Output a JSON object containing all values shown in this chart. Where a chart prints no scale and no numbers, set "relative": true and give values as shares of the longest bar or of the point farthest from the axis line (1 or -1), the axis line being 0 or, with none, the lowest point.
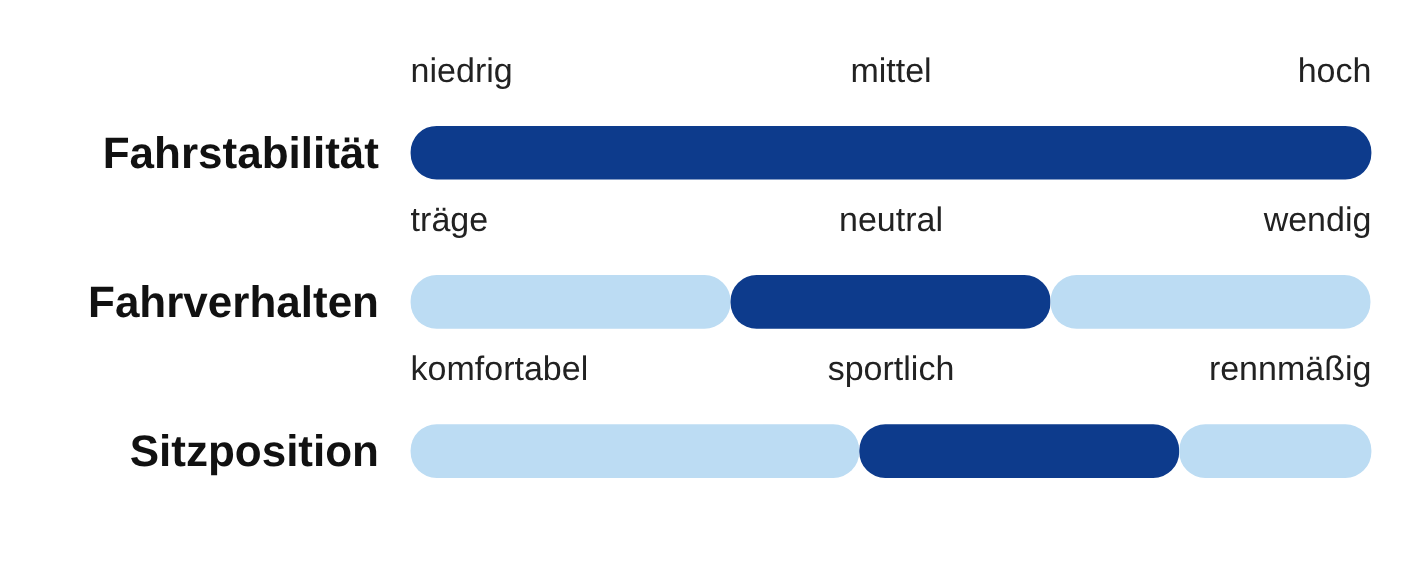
{
  "chart_data": {
    "type": "bar",
    "orientation": "horizontal",
    "stacked": true,
    "relative": true,
    "categories": [
      "Fahrstabilität",
      "Fahrverhalten",
      "Sitzposition"
    ],
    "series": [
      {
        "color": "#bcdcf3",
        "values": [
          0,
          0.333,
          0.467
        ]
      },
      {
        "color": "#0d3b8c",
        "values": [
          1,
          0.333,
          0.333
        ]
      },
      {
        "color": "#bcdcf3",
        "values": [
          0,
          0.333,
          0.2
        ]
      }
    ],
    "annotations": [
      "niedrig",
      "mittel",
      "hoch",
      "träge",
      "neutral",
      "wendig",
      "komfortabel",
      "sportlich",
      "rennmäßig"
    ],
    "grid": false
  }
}
